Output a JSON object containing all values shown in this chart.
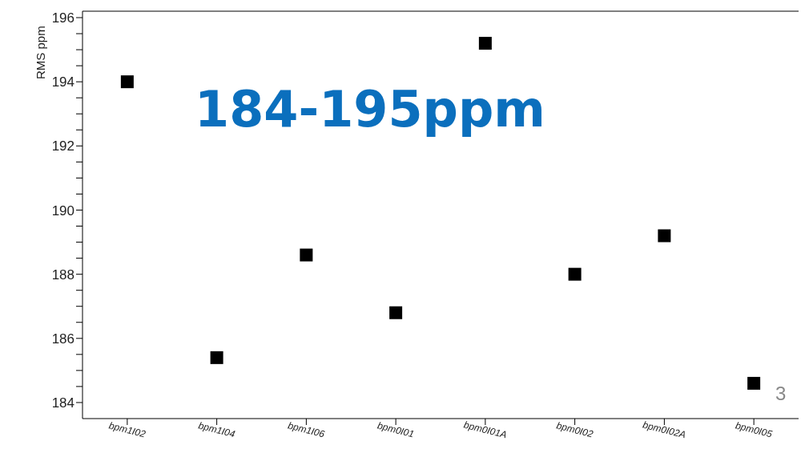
{
  "chart_data": {
    "type": "scatter",
    "ylabel": "RMS ppm",
    "categories": [
      "bpm1I02",
      "bpm1I04",
      "bpm1I06",
      "bpm0I01",
      "bpm0I01A",
      "bpm0I02",
      "bpm0I02A",
      "bpm0I05"
    ],
    "series": [
      {
        "color": "#000000",
        "values": [
          194.0,
          185.4,
          188.6,
          186.8,
          195.2,
          188.0,
          189.2,
          184.6
        ]
      }
    ],
    "ylim": [
      183.5,
      196.2
    ],
    "yticks": [
      184,
      {
        "value": 184.5,
        "label": null
      },
      {
        "value": 185,
        "label": null
      },
      {
        "value": 185.5,
        "label": null
      },
      186,
      {
        "value": 186.5,
        "label": null
      },
      {
        "value": 187,
        "label": null
      },
      {
        "value": 187.5,
        "label": null
      },
      188,
      {
        "value": 188.5,
        "label": null
      },
      {
        "value": 189,
        "label": null
      },
      {
        "value": 189.5,
        "label": null
      },
      190,
      {
        "value": 190.5,
        "label": null
      },
      {
        "value": 191,
        "label": null
      },
      {
        "value": 191.5,
        "label": null
      },
      192,
      {
        "value": 192.5,
        "label": null
      },
      {
        "value": 193,
        "label": null
      },
      {
        "value": 193.5,
        "label": null
      },
      194,
      {
        "value": 194.5,
        "label": null
      },
      {
        "value": 195,
        "label": null
      },
      {
        "value": 195.5,
        "label": null
      },
      196
    ],
    "marker": "square",
    "grid": false,
    "annotations": [
      "184-195ppm",
      "3"
    ]
  }
}
